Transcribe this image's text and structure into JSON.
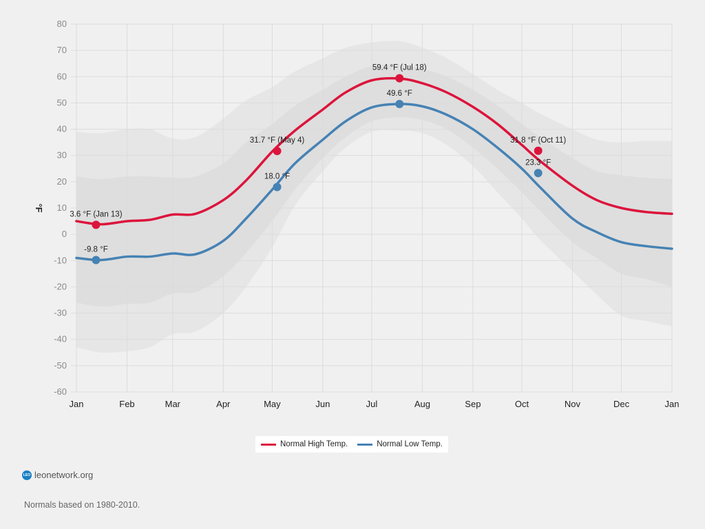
{
  "chart_data": {
    "type": "line",
    "title": "",
    "xlabel": "",
    "ylabel": "°F",
    "ylim": [
      -60,
      80
    ],
    "yticks": [
      80,
      70,
      60,
      50,
      40,
      30,
      20,
      10,
      0,
      -10,
      -20,
      -30,
      -40,
      -50,
      -60
    ],
    "xticks": [
      "Jan",
      "Feb",
      "Mar",
      "Apr",
      "May",
      "Jun",
      "Jul",
      "Aug",
      "Sep",
      "Oct",
      "Nov",
      "Dec",
      "Jan"
    ],
    "xlim_days": [
      0,
      365
    ],
    "grid": true,
    "x_days": [
      0,
      15,
      31,
      45,
      59,
      73,
      90,
      104,
      120,
      134,
      151,
      165,
      181,
      198,
      212,
      227,
      243,
      258,
      273,
      284,
      304,
      319,
      334,
      349,
      365
    ],
    "series": [
      {
        "name": "Normal High Temp.",
        "color": "#dc143c",
        "values": [
          5,
          3.8,
          5,
          5.5,
          7.5,
          7.8,
          13,
          20.5,
          31.5,
          39.5,
          47.5,
          54,
          58.6,
          59.3,
          57.5,
          54,
          48.5,
          42,
          34,
          28,
          18.5,
          13,
          10,
          8.5,
          7.8
        ]
      },
      {
        "name": "Normal Low Temp.",
        "color": "#4682b4",
        "values": [
          -9,
          -9.8,
          -8.5,
          -8.5,
          -7.3,
          -7.6,
          -2.5,
          6,
          17,
          27,
          36,
          43,
          48.3,
          49.6,
          48.7,
          45.5,
          40,
          33,
          25,
          18,
          6,
          0.8,
          -3,
          -4.5,
          -5.5
        ]
      }
    ],
    "bands": [
      {
        "name": "outer-range",
        "color": "#e6e6e6",
        "upper": [
          39,
          38.5,
          40,
          40,
          36.5,
          37,
          44,
          51,
          56,
          62,
          67,
          71,
          73,
          73.5,
          71,
          67,
          61,
          55,
          50,
          46,
          40,
          36,
          35,
          35.5,
          35.5
        ],
        "lower": [
          -43,
          -45,
          -44.5,
          -43,
          -38,
          -37,
          -30,
          -20,
          -5,
          11,
          24,
          33,
          39,
          39.5,
          38.5,
          34,
          26,
          16,
          6,
          -2,
          -14,
          -23,
          -31,
          -33,
          -35
        ]
      },
      {
        "name": "inner-range",
        "color": "#dedede",
        "upper": [
          22,
          21,
          22,
          22,
          21.5,
          22,
          27,
          35,
          42,
          49,
          55,
          60,
          64,
          64.5,
          63,
          60,
          55,
          49,
          42,
          37,
          29,
          24,
          22.5,
          21.5,
          21
        ],
        "lower": [
          -26,
          -27.5,
          -26.5,
          -26,
          -22.5,
          -22,
          -16,
          -7,
          5,
          17,
          29,
          37,
          43,
          44.5,
          43.5,
          40,
          33,
          25,
          16,
          9,
          -3,
          -9,
          -15,
          -17,
          -20
        ]
      }
    ],
    "annotations": [
      {
        "series": 0,
        "day": 12,
        "value": 3.6,
        "label": "3.6 °F (Jan 13)"
      },
      {
        "series": 1,
        "day": 12,
        "value": -9.8,
        "label": "-9.8 °F"
      },
      {
        "series": 0,
        "day": 123,
        "value": 31.7,
        "label": "31.7 °F (May 4)"
      },
      {
        "series": 1,
        "day": 123,
        "value": 18.0,
        "label": "18.0 °F"
      },
      {
        "series": 0,
        "day": 198,
        "value": 59.4,
        "label": "59.4 °F (Jul 18)"
      },
      {
        "series": 1,
        "day": 198,
        "value": 49.6,
        "label": "49.6 °F"
      },
      {
        "series": 0,
        "day": 283,
        "value": 31.8,
        "label": "31.8 °F (Oct 11)"
      },
      {
        "series": 1,
        "day": 283,
        "value": 23.3,
        "label": "23.3 °F"
      }
    ],
    "legend": {
      "placement": "bottom-center",
      "entries": [
        "Normal High Temp.",
        "Normal Low Temp."
      ]
    }
  },
  "footer": {
    "brand_icon_text": "LEO",
    "brand_label": "leonetwork.org",
    "note": "Normals based on 1980-2010."
  }
}
